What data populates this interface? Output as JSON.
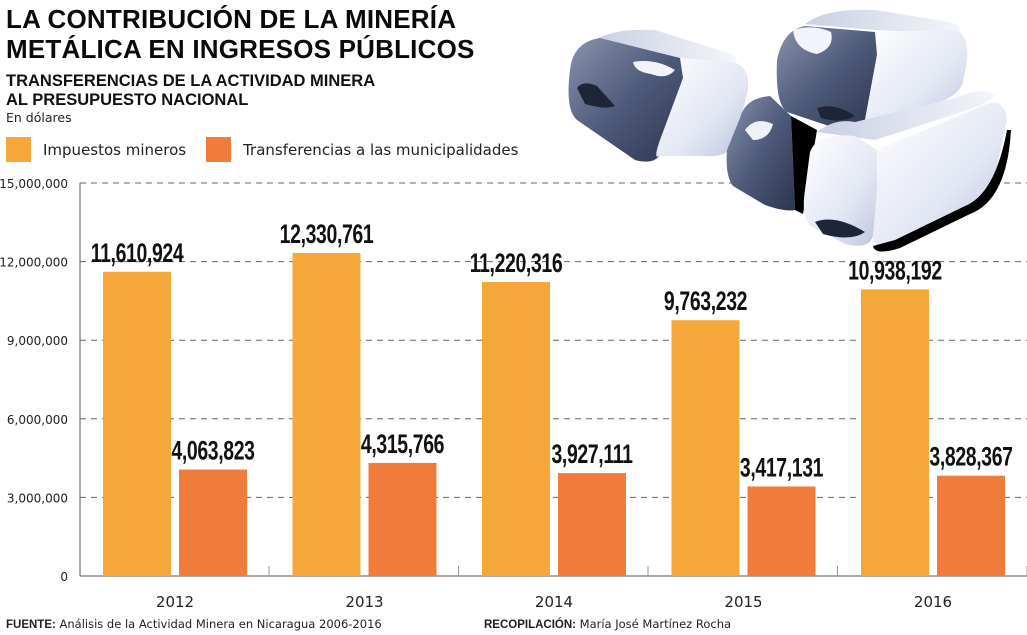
{
  "header": {
    "title_line1": "LA CONTRIBUCIÓN DE LA MINERÍA",
    "title_line2": "METÁLICA EN INGRESOS PÚBLICOS",
    "subtitle_line1": "TRANSFERENCIAS DE LA ACTIVIDAD MINERA",
    "subtitle_line2": "AL PRESUPUESTO NACIONAL",
    "unit": "En dólares"
  },
  "illustration": {
    "icon": "silver-bars-icon"
  },
  "footer": {
    "source_label": "FUENTE:",
    "source_text": "Análisis de la Actividad Minera en Nicaragua 2006-2016",
    "compiled_label": "RECOPILACIÓN:",
    "compiled_text": "María José Martínez Rocha"
  },
  "chart_data": {
    "type": "bar",
    "title": "LA CONTRIBUCIÓN DE LA MINERÍA METÁLICA EN INGRESOS PÚBLICOS",
    "subtitle": "TRANSFERENCIAS DE LA ACTIVIDAD MINERA AL PRESUPUESTO NACIONAL",
    "xlabel": "",
    "ylabel": "En dólares",
    "ylim": [
      0,
      15000000
    ],
    "yticks": [
      0,
      3000000,
      6000000,
      9000000,
      12000000,
      15000000
    ],
    "ytick_labels": [
      "0",
      "3,000,000",
      "6,000,000",
      "9,000,000",
      "12,000,000",
      "15,000,000"
    ],
    "grid": true,
    "legend_position": "top-left",
    "categories": [
      "2012",
      "2013",
      "2014",
      "2015",
      "2016"
    ],
    "series": [
      {
        "name": "Impuestos mineros",
        "color": "#F6A73A",
        "values": [
          11610924,
          12330761,
          11220316,
          9763232,
          10938192
        ],
        "labels": [
          "11,610,924",
          "12,330,761",
          "11,220,316",
          "9,763,232",
          "10,938,192"
        ]
      },
      {
        "name": "Transferencias a las municipalidades",
        "color": "#F07C3C",
        "values": [
          4063823,
          4315766,
          3927111,
          3417131,
          3828367
        ],
        "labels": [
          "4,063,823",
          "4,315,766",
          "3,927,111",
          "3,417,131",
          "3,828,367"
        ]
      }
    ]
  }
}
